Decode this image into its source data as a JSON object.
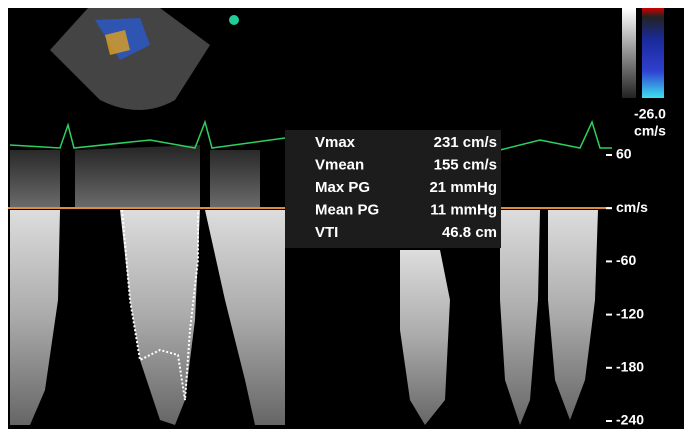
{
  "measurements": [
    {
      "label": "Vmax",
      "value": "231 cm/s"
    },
    {
      "label": "Vmean",
      "value": "155 cm/s"
    },
    {
      "label": "Max PG",
      "value": "21 mmHg"
    },
    {
      "label": "Mean PG",
      "value": "11 mmHg"
    },
    {
      "label": "VTI",
      "value": "46.8 cm"
    }
  ],
  "velocity_scale": {
    "ticks": [
      "60",
      "cm/s",
      "-60",
      "-120",
      "-180",
      "-240"
    ]
  },
  "color_bar": {
    "value": "-26.0",
    "unit": "cm/s"
  }
}
